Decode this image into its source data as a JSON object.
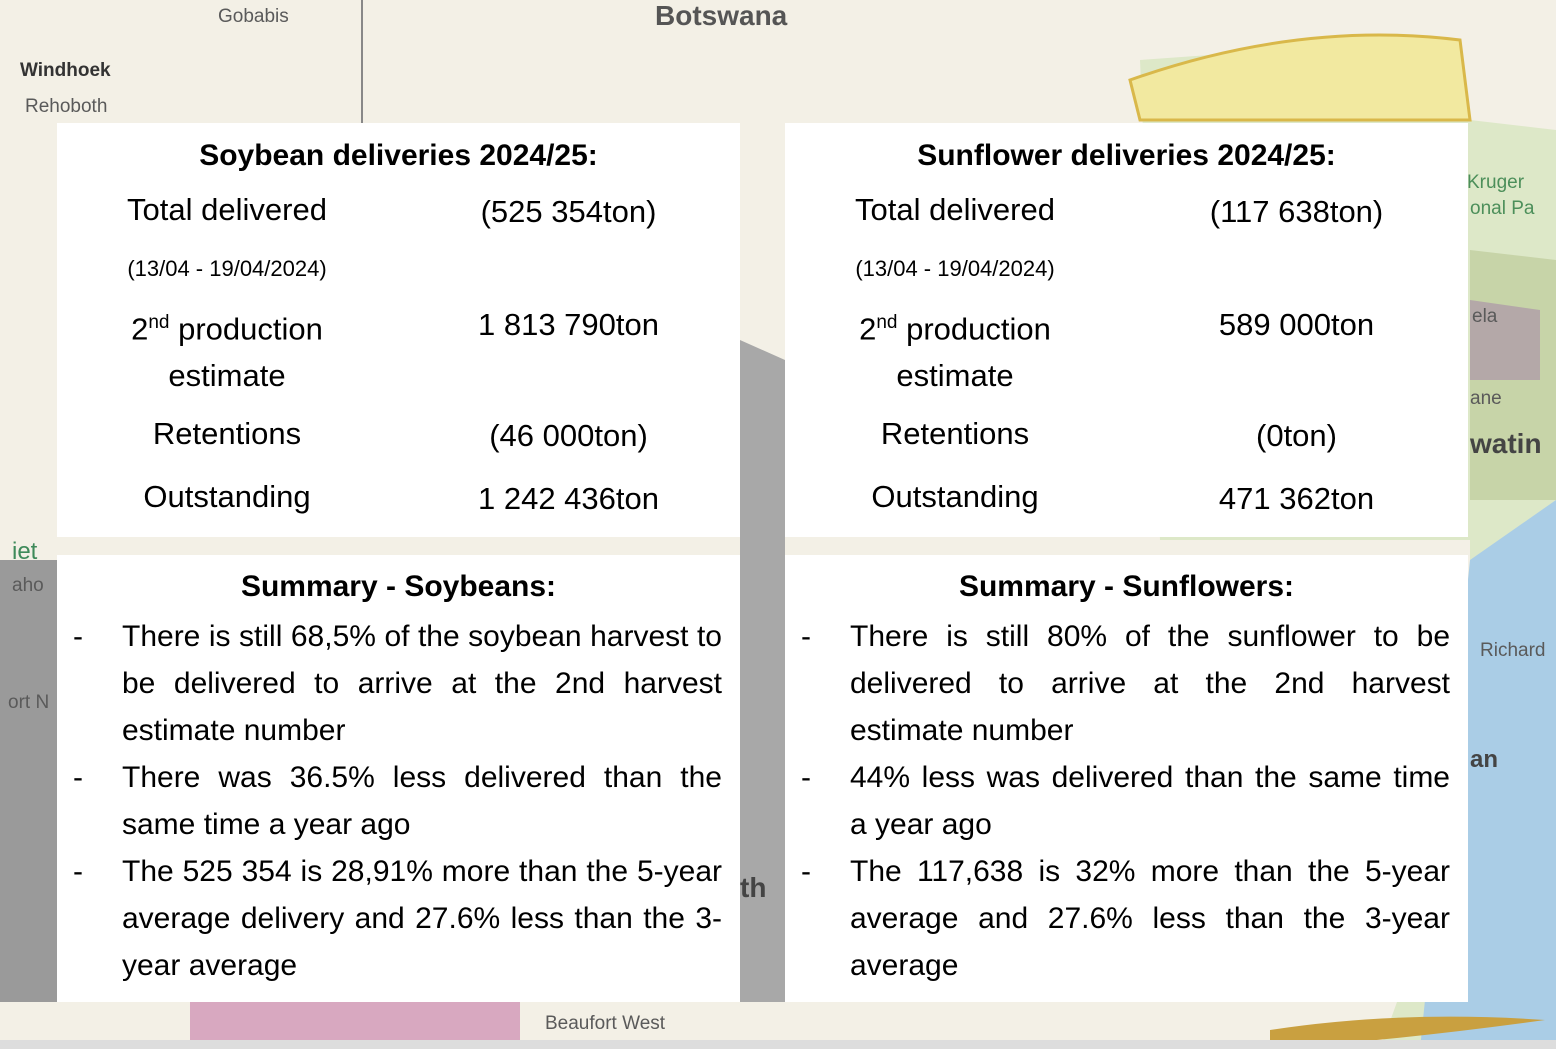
{
  "map_labels": {
    "gobabis": "Gobabis",
    "botswana": "Botswana",
    "windhoek": "Windhoek",
    "rehoboth": "Rehoboth",
    "kruger": "Kruger",
    "national_park": "onal Pa",
    "ela": "ela",
    "ane": "ane",
    "watini": "watin",
    "richards": "Richard",
    "an": "an",
    "iet": "iet",
    "aho": "aho",
    "ort": "ort N",
    "th": "th",
    "beaufort_west": "Beaufort West"
  },
  "deliveries": [
    {
      "title": "Soybean deliveries 2024/25:",
      "rows": [
        {
          "label": "Total delivered",
          "note": "(13/04 - 19/04/2024)",
          "value": "(525 354ton)"
        },
        {
          "label_num": "2",
          "label_sup": "nd",
          "label": "production estimate",
          "value": "1 813 790ton"
        },
        {
          "label": "Retentions",
          "value": "(46 000ton)"
        },
        {
          "label": "Outstanding",
          "value": "1 242 436ton"
        }
      ]
    },
    {
      "title": "Sunflower deliveries 2024/25:",
      "rows": [
        {
          "label": "Total delivered",
          "note": "(13/04 - 19/04/2024)",
          "value": "(117 638ton)"
        },
        {
          "label_num": "2",
          "label_sup": "nd",
          "label": "production estimate",
          "value": "589 000ton"
        },
        {
          "label": "Retentions",
          "value": "(0ton)"
        },
        {
          "label": "Outstanding",
          "value": "471 362ton"
        }
      ]
    }
  ],
  "summaries": [
    {
      "title": "Summary - Soybeans:",
      "marker": "-",
      "bullets": [
        "There is still 68,5% of the soybean harvest to be delivered to arrive at the 2nd harvest estimate number",
        "There was 36.5% less delivered than the same time a year ago",
        "The 525 354 is 28,91% more than the 5-year average delivery and 27.6% less than the 3-year average"
      ]
    },
    {
      "title": "Summary - Sunflowers:",
      "marker": "-",
      "bullets": [
        "There is still 80% of the sunflower to be delivered to arrive at the 2nd harvest estimate number",
        "44% less was delivered than the same time a year ago",
        "The 117,638 is 32% more than the 5-year average and 27.6% less than the 3-year average"
      ]
    }
  ]
}
